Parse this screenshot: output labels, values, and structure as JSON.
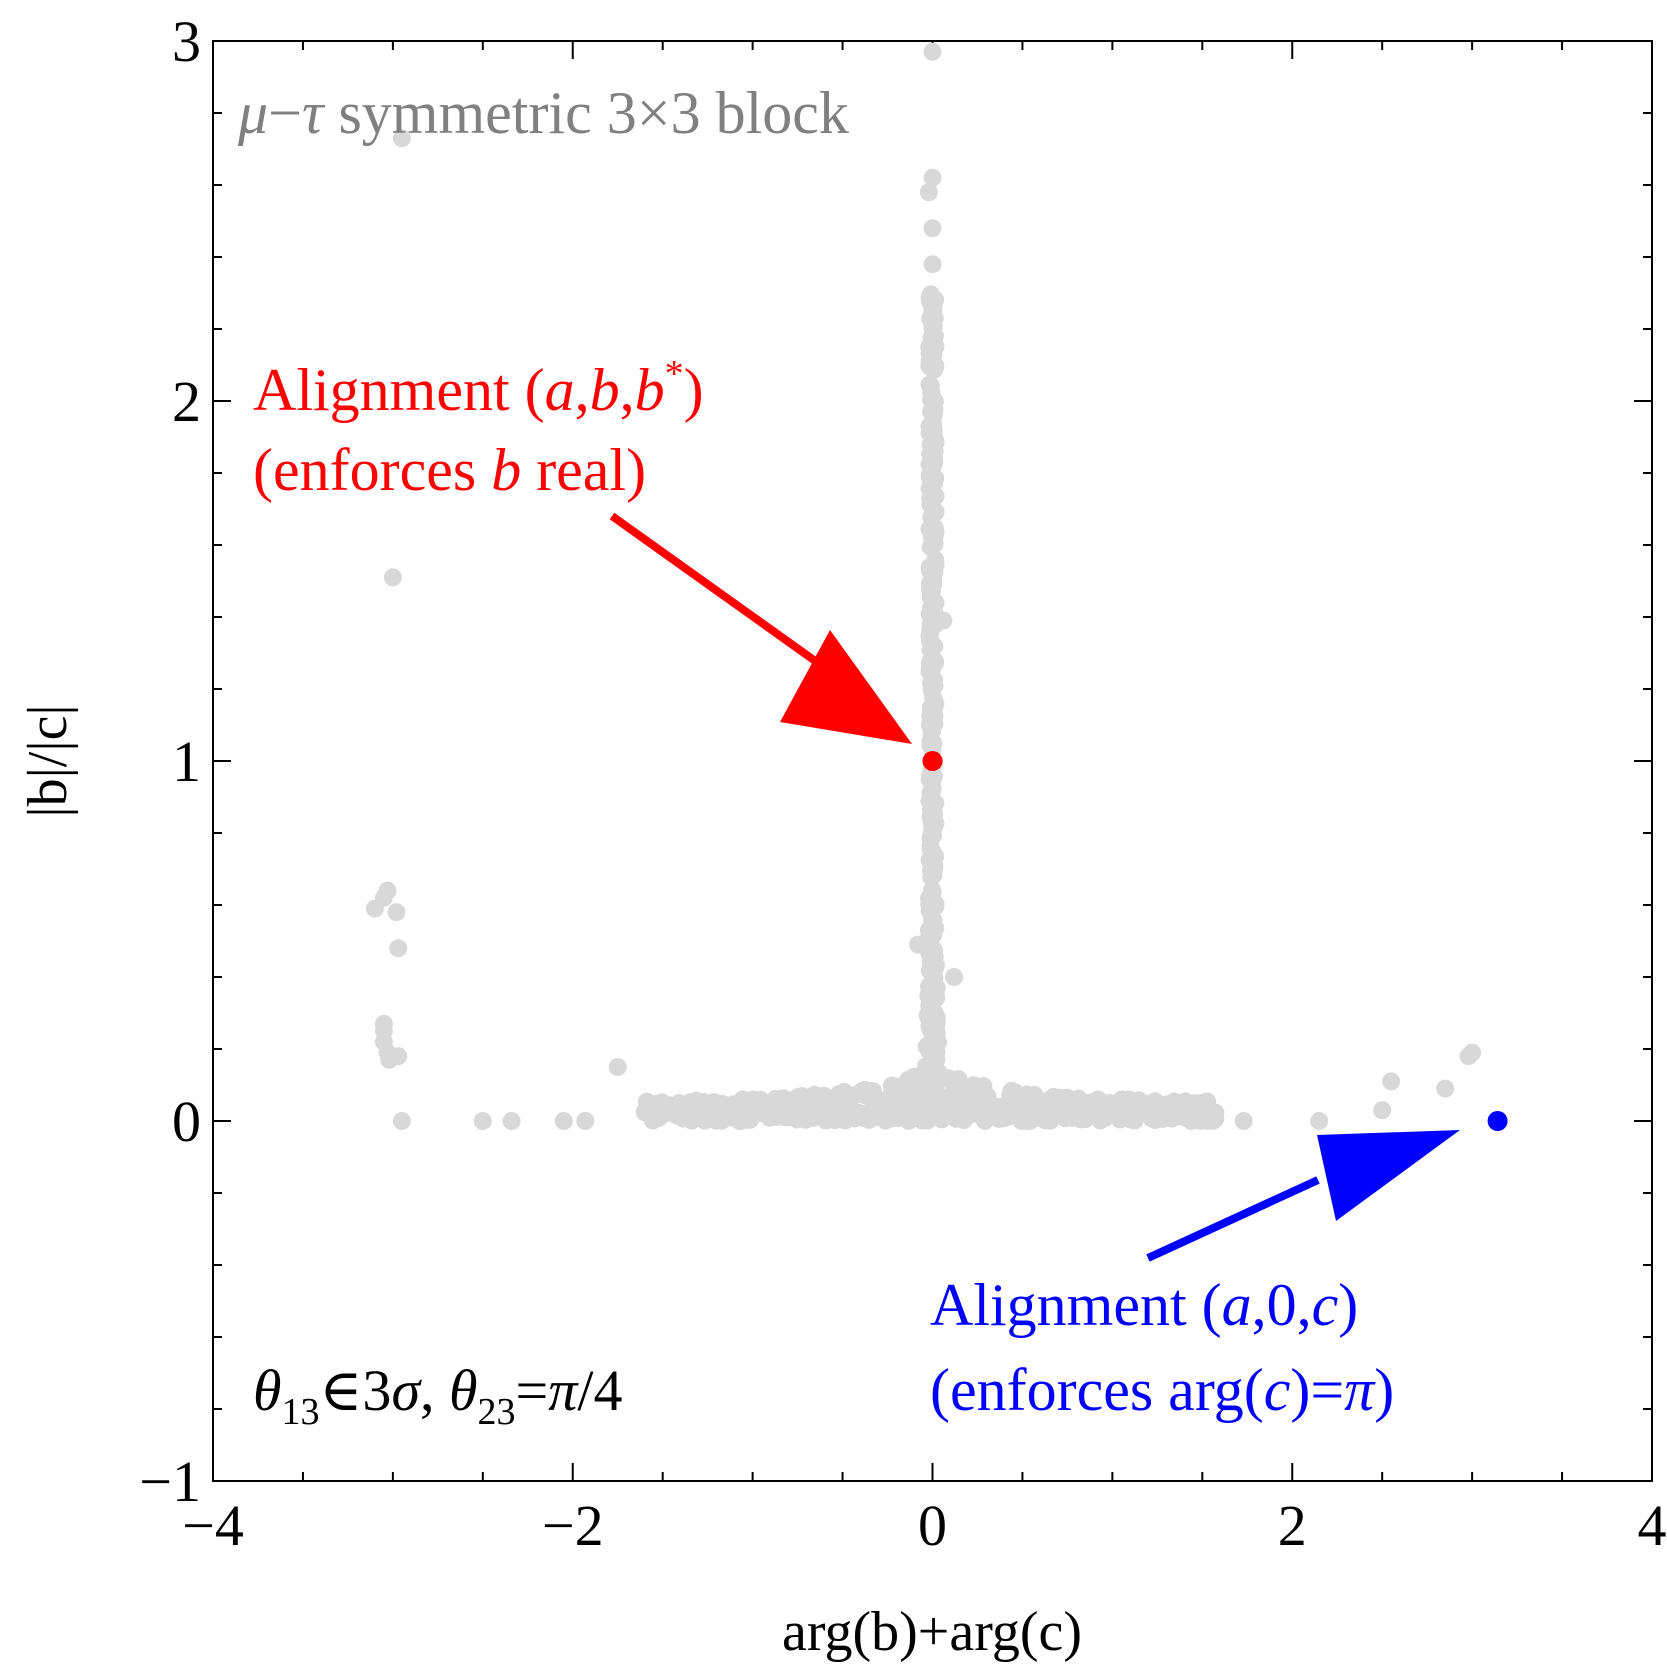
{
  "chart_data": {
    "type": "scatter",
    "title": "μ−τ symmetric 3×3 block",
    "xlabel": "arg(b)+arg(c)",
    "ylabel": "|b|/|c|",
    "xlim": [
      -4,
      4
    ],
    "ylim": [
      -1,
      3
    ],
    "x_ticks": [
      -4,
      -2,
      0,
      2,
      4
    ],
    "y_ticks": [
      -1,
      0,
      1,
      2,
      3
    ],
    "x_tick_labels": [
      "−4",
      "−2",
      "0",
      "2",
      "4"
    ],
    "y_tick_labels": [
      "−1",
      "0",
      "1",
      "2",
      "3"
    ],
    "grid": false,
    "scatter_color": "#d8d8d8",
    "scatter_points": [
      [
        -2.95,
        2.73
      ],
      [
        -3.0,
        1.51
      ],
      [
        0.0,
        2.97
      ],
      [
        0.0,
        2.62
      ],
      [
        -0.02,
        2.58
      ],
      [
        0.0,
        2.48
      ],
      [
        0.0,
        2.38
      ],
      [
        0.0,
        2.25
      ],
      [
        0.0,
        2.22
      ],
      [
        0.0,
        2.18
      ],
      [
        0.06,
        1.39
      ],
      [
        0.12,
        0.4
      ],
      [
        -0.08,
        0.49
      ],
      [
        -3.1,
        0.59
      ],
      [
        -3.05,
        0.62
      ],
      [
        -3.03,
        0.64
      ],
      [
        -2.98,
        0.58
      ],
      [
        -2.97,
        0.48
      ],
      [
        -3.05,
        0.27
      ],
      [
        -3.05,
        0.25
      ],
      [
        -3.05,
        0.22
      ],
      [
        -3.03,
        0.19
      ],
      [
        -3.02,
        0.17
      ],
      [
        -2.97,
        0.18
      ],
      [
        -2.95,
        0.0
      ],
      [
        -2.5,
        0.0
      ],
      [
        -2.34,
        0.0
      ],
      [
        -2.05,
        0.0
      ],
      [
        -1.93,
        0.0
      ],
      [
        -1.75,
        0.15
      ],
      [
        1.73,
        0.0
      ],
      [
        2.15,
        0.0
      ],
      [
        2.5,
        0.03
      ],
      [
        2.55,
        0.11
      ],
      [
        2.85,
        0.09
      ],
      [
        2.98,
        0.18
      ],
      [
        3.0,
        0.19
      ]
    ],
    "core_band": {
      "x_range": [
        -1.6,
        1.6
      ],
      "y_max": 0.04
    },
    "stem": {
      "x_center": 0.0,
      "y_top": 2.3
    },
    "highlight_points": [
      {
        "name": "Alignment (a,b,b*)",
        "x": 0.0,
        "y": 1.0,
        "color": "#ff0000"
      },
      {
        "name": "Alignment (a,0,c)",
        "x": 3.14159,
        "y": 0.0,
        "color": "#0000ff"
      }
    ]
  },
  "annotations": {
    "red": {
      "line1": {
        "a": "Alignment (",
        "b": "a",
        "c": ",",
        "d": "b",
        "e": ",",
        "f": "b",
        "sup": "*",
        "g": ")"
      },
      "line2": {
        "a": "(enforces ",
        "b": "b",
        "c": " real)"
      },
      "color": "#ff0000"
    },
    "blue": {
      "line1": {
        "a": "Alignment (",
        "b": "a",
        "c": ",0,",
        "d": "c",
        "e": ")"
      },
      "line2": {
        "a": "(enforces arg(",
        "b": "c",
        "c": ")=",
        "d": "π",
        "e": ")"
      },
      "color": "#0000ff"
    },
    "condition": {
      "t1": "θ",
      "s1": "13",
      "t2": "∈3",
      "t3": "σ",
      "t4": ", ",
      "t5": "θ",
      "s2": "23",
      "t6": "=",
      "t7": "π",
      "t8": "/4"
    }
  },
  "title_parts": {
    "mu": "μ",
    "dash": "−",
    "tau": "τ",
    "rest": " symmetric 3×3 block"
  }
}
